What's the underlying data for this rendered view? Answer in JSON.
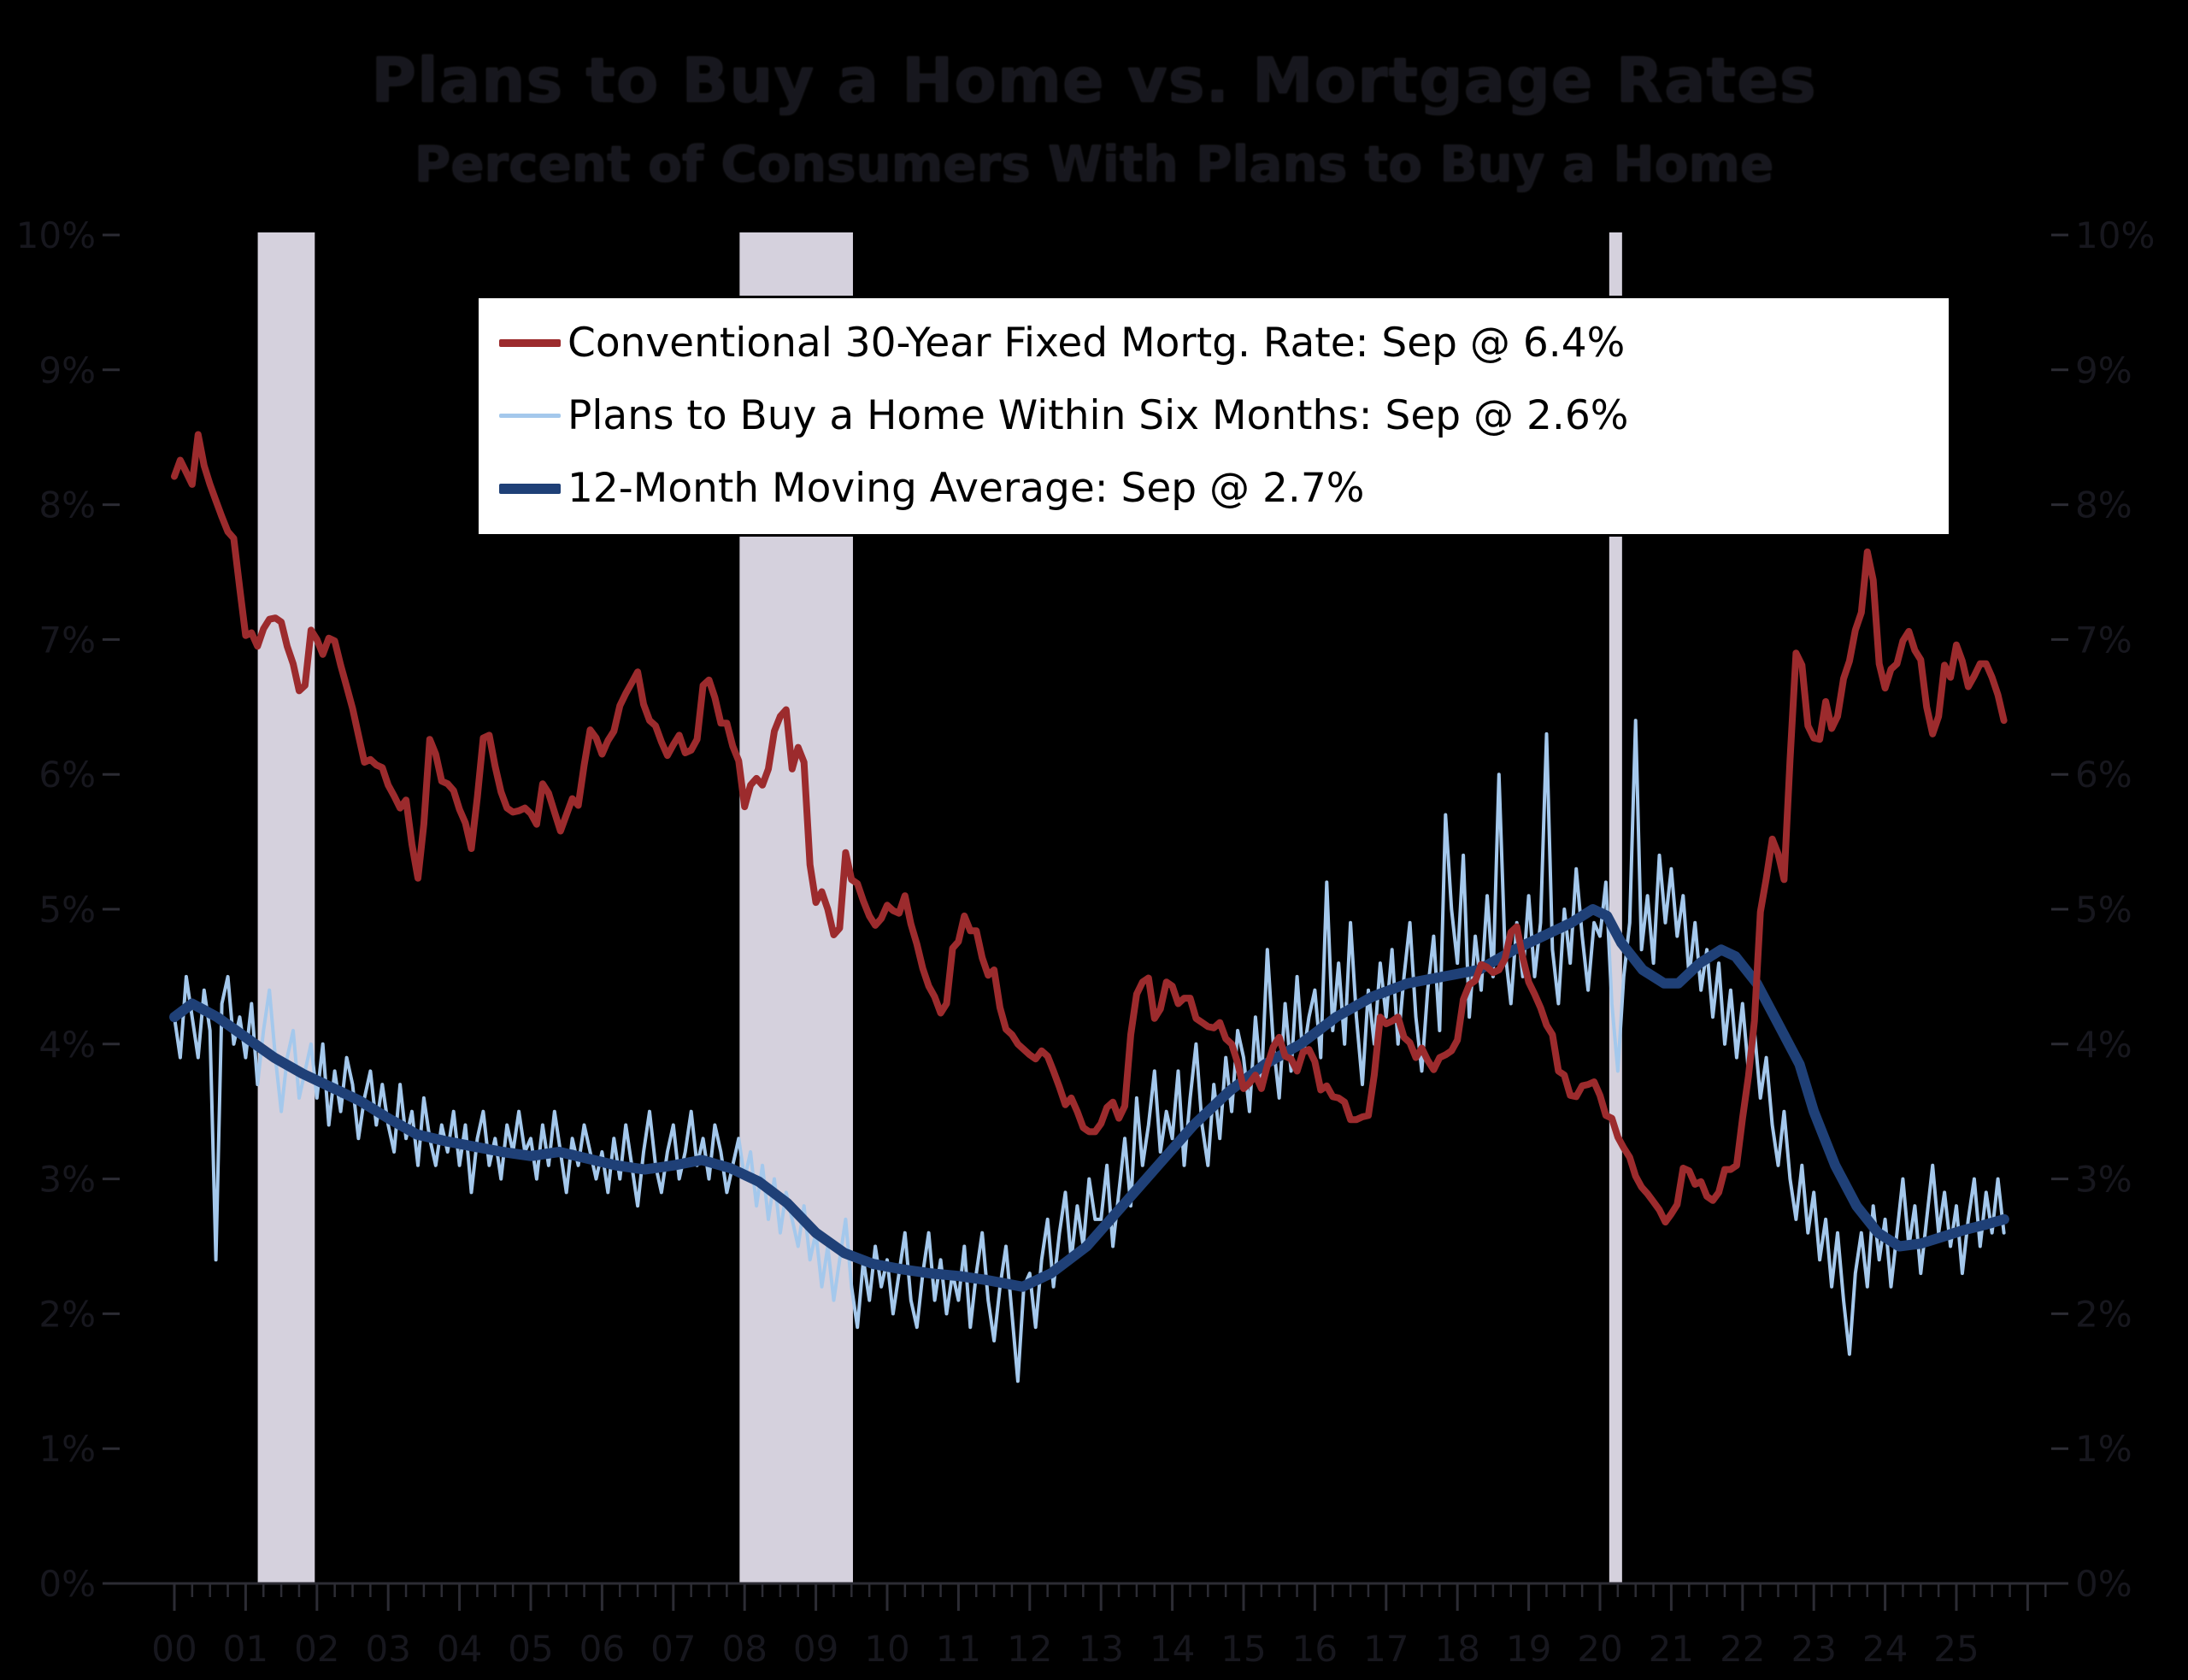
{
  "page": {
    "title": "Plans to Buy a Home vs. Mortgage Rates",
    "subtitle": "Percent of Consumers With Plans to Buy a Home"
  },
  "legend": {
    "items": [
      {
        "label": "Conventional 30-Year Fixed Mortg. Rate: Sep @ 6.4%",
        "color": "#9c2b2d",
        "weight": 9
      },
      {
        "label": "Plans to Buy a Home Within Six Months: Sep @ 2.6%",
        "color": "#a4c8ec",
        "weight": 5
      },
      {
        "label": "12-Month Moving Average: Sep @ 2.7%",
        "color": "#1f4077",
        "weight": 12
      }
    ]
  },
  "axes": {
    "left_labels": [
      "10%",
      "9%",
      "8%",
      "7%",
      "6%",
      "5%",
      "4%",
      "3%",
      "2%",
      "1%",
      "0%"
    ],
    "right_labels": [
      "10%",
      "9%",
      "8%",
      "7%",
      "6%",
      "5%",
      "4%",
      "3%",
      "2%",
      "1%",
      "0%"
    ],
    "x_labels": [
      "00",
      "01",
      "02",
      "03",
      "04",
      "05",
      "06",
      "07",
      "08",
      "09",
      "10",
      "11",
      "12",
      "13",
      "14",
      "15",
      "16",
      "17",
      "18",
      "19",
      "20",
      "21",
      "22",
      "23",
      "24",
      "25"
    ]
  },
  "colors": {
    "background": "#000000",
    "text_dark": "#17171e",
    "axis": "#2c2c34",
    "recession_band": "#d5d1dd",
    "legend_bg": "#ffffff",
    "legend_border": "#000000",
    "mortgage_red": "#9c2b2d",
    "plans_light_blue": "#a4c8ec",
    "moving_avg_navy": "#1f4077"
  },
  "chart_data": {
    "type": "line",
    "title": "Plans to Buy a Home vs. Mortgage Rates",
    "subtitle": "Percent of Consumers With Plans to Buy a Home",
    "ylabel_left": "%",
    "ylabel_right": "%",
    "ylim": [
      0,
      10
    ],
    "xlim": [
      2000,
      2026.3
    ],
    "grid": false,
    "legend_position": "top-center",
    "recession_shading_years": [
      [
        2001.17,
        2001.97
      ],
      [
        2007.93,
        2009.52
      ],
      [
        2020.13,
        2020.31
      ]
    ],
    "series": [
      {
        "name": "Conventional 30-Year Fixed Mortg. Rate",
        "latest_label": "Sep @ 6.4%",
        "color": "#9c2b2d",
        "frequency": "monthly",
        "start_year": 2000,
        "start_month": 1,
        "values": [
          8.21,
          8.33,
          8.24,
          8.15,
          8.52,
          8.29,
          8.15,
          8.03,
          7.91,
          7.8,
          7.75,
          7.38,
          7.03,
          7.05,
          6.95,
          7.08,
          7.15,
          7.16,
          7.13,
          6.95,
          6.82,
          6.62,
          6.66,
          7.07,
          7.0,
          6.89,
          7.01,
          6.99,
          6.81,
          6.65,
          6.49,
          6.29,
          6.09,
          6.11,
          6.07,
          6.05,
          5.92,
          5.84,
          5.75,
          5.81,
          5.48,
          5.23,
          5.63,
          6.26,
          6.15,
          5.95,
          5.93,
          5.88,
          5.74,
          5.64,
          5.45,
          5.83,
          6.27,
          6.29,
          6.06,
          5.87,
          5.75,
          5.72,
          5.73,
          5.75,
          5.71,
          5.63,
          5.93,
          5.86,
          5.72,
          5.58,
          5.7,
          5.82,
          5.77,
          6.07,
          6.33,
          6.27,
          6.15,
          6.25,
          6.32,
          6.51,
          6.6,
          6.68,
          6.76,
          6.52,
          6.4,
          6.36,
          6.24,
          6.14,
          6.22,
          6.29,
          6.16,
          6.18,
          6.26,
          6.66,
          6.7,
          6.57,
          6.38,
          6.38,
          6.21,
          6.1,
          5.76,
          5.92,
          5.97,
          5.92,
          6.04,
          6.32,
          6.43,
          6.48,
          6.04,
          6.2,
          6.09,
          5.33,
          5.05,
          5.13,
          5.0,
          4.81,
          4.86,
          5.42,
          5.22,
          5.19,
          5.06,
          4.95,
          4.88,
          4.93,
          5.03,
          4.99,
          4.97,
          5.1,
          4.89,
          4.74,
          4.56,
          4.43,
          4.35,
          4.23,
          4.3,
          4.71,
          4.76,
          4.95,
          4.84,
          4.84,
          4.64,
          4.51,
          4.55,
          4.27,
          4.11,
          4.07,
          4.0,
          3.96,
          3.92,
          3.89,
          3.95,
          3.91,
          3.8,
          3.68,
          3.55,
          3.6,
          3.5,
          3.38,
          3.35,
          3.35,
          3.41,
          3.53,
          3.57,
          3.45,
          3.54,
          4.07,
          4.37,
          4.46,
          4.49,
          4.19,
          4.26,
          4.46,
          4.43,
          4.3,
          4.34,
          4.34,
          4.19,
          4.16,
          4.13,
          4.12,
          4.16,
          4.04,
          4.0,
          3.86,
          3.67,
          3.71,
          3.77,
          3.67,
          3.84,
          3.98,
          4.05,
          3.91,
          3.89,
          3.8,
          3.94,
          3.96,
          3.87,
          3.66,
          3.69,
          3.61,
          3.6,
          3.57,
          3.44,
          3.44,
          3.46,
          3.47,
          3.77,
          4.2,
          4.15,
          4.17,
          4.2,
          4.05,
          4.01,
          3.9,
          3.97,
          3.88,
          3.81,
          3.9,
          3.92,
          3.95,
          4.03,
          4.33,
          4.44,
          4.47,
          4.59,
          4.57,
          4.53,
          4.55,
          4.63,
          4.83,
          4.87,
          4.64,
          4.46,
          4.37,
          4.27,
          4.14,
          4.07,
          3.8,
          3.77,
          3.62,
          3.61,
          3.69,
          3.7,
          3.72,
          3.62,
          3.47,
          3.45,
          3.31,
          3.23,
          3.16,
          3.02,
          2.94,
          2.89,
          2.83,
          2.77,
          2.68,
          2.74,
          2.81,
          3.08,
          3.06,
          2.96,
          2.98,
          2.87,
          2.84,
          2.9,
          3.07,
          3.07,
          3.1,
          3.45,
          3.76,
          4.17,
          4.98,
          5.23,
          5.52,
          5.41,
          5.22,
          6.11,
          6.9,
          6.81,
          6.36,
          6.27,
          6.26,
          6.54,
          6.34,
          6.43,
          6.71,
          6.84,
          7.07,
          7.2,
          7.65,
          7.44,
          6.82,
          6.64,
          6.78,
          6.82,
          6.99,
          7.06,
          6.92,
          6.85,
          6.5,
          6.3,
          6.43,
          6.81,
          6.72,
          6.96,
          6.84,
          6.65,
          6.73,
          6.82,
          6.82,
          6.72,
          6.59,
          6.4
        ]
      },
      {
        "name": "Plans to Buy a Home Within Six Months",
        "latest_label": "Sep @ 2.6%",
        "color": "#a4c8ec",
        "frequency": "monthly",
        "start_year": 2000,
        "start_month": 1,
        "values": [
          4.2,
          3.9,
          4.5,
          4.2,
          3.9,
          4.4,
          4.1,
          2.4,
          4.3,
          4.5,
          4.0,
          4.2,
          3.9,
          4.3,
          3.7,
          4.1,
          4.4,
          3.9,
          3.5,
          3.9,
          4.1,
          3.6,
          3.8,
          4.0,
          3.6,
          4.0,
          3.4,
          3.8,
          3.5,
          3.9,
          3.7,
          3.3,
          3.6,
          3.8,
          3.4,
          3.7,
          3.4,
          3.2,
          3.7,
          3.3,
          3.5,
          3.1,
          3.6,
          3.3,
          3.1,
          3.4,
          3.2,
          3.5,
          3.1,
          3.4,
          2.9,
          3.3,
          3.5,
          3.1,
          3.3,
          3.0,
          3.4,
          3.2,
          3.5,
          3.2,
          3.3,
          3.0,
          3.4,
          3.1,
          3.5,
          3.2,
          2.9,
          3.3,
          3.1,
          3.4,
          3.2,
          3.0,
          3.2,
          2.9,
          3.3,
          3.0,
          3.4,
          3.1,
          2.8,
          3.2,
          3.5,
          3.1,
          2.9,
          3.2,
          3.4,
          3.0,
          3.2,
          3.5,
          3.1,
          3.3,
          3.0,
          3.4,
          3.2,
          2.9,
          3.1,
          3.3,
          3.0,
          3.2,
          2.8,
          3.1,
          2.7,
          3.0,
          2.6,
          2.9,
          2.7,
          2.5,
          2.8,
          2.4,
          2.6,
          2.2,
          2.5,
          2.1,
          2.4,
          2.7,
          2.2,
          1.9,
          2.4,
          2.1,
          2.5,
          2.2,
          2.4,
          2.0,
          2.3,
          2.6,
          2.1,
          1.9,
          2.3,
          2.6,
          2.1,
          2.4,
          2.0,
          2.3,
          2.1,
          2.5,
          1.9,
          2.3,
          2.6,
          2.1,
          1.8,
          2.2,
          2.5,
          2.0,
          1.5,
          2.2,
          2.3,
          1.9,
          2.4,
          2.7,
          2.2,
          2.6,
          2.9,
          2.4,
          2.8,
          2.5,
          3.0,
          2.7,
          2.7,
          3.1,
          2.5,
          2.9,
          3.3,
          2.8,
          3.6,
          3.1,
          3.4,
          3.8,
          3.2,
          3.5,
          3.3,
          3.8,
          3.1,
          3.6,
          4.0,
          3.4,
          3.1,
          3.7,
          3.3,
          3.9,
          3.5,
          4.1,
          3.9,
          3.5,
          4.2,
          3.7,
          4.7,
          4.0,
          3.6,
          4.3,
          3.8,
          4.5,
          3.9,
          4.2,
          4.4,
          3.9,
          5.2,
          4.1,
          4.6,
          4.0,
          4.9,
          4.2,
          3.7,
          4.4,
          4.0,
          4.6,
          4.2,
          4.7,
          4.0,
          4.5,
          4.9,
          4.2,
          3.8,
          4.4,
          4.8,
          4.1,
          5.7,
          5.0,
          4.6,
          5.4,
          4.2,
          4.8,
          4.4,
          5.1,
          4.5,
          6.0,
          4.7,
          4.3,
          4.9,
          4.5,
          5.1,
          4.5,
          4.9,
          6.3,
          4.7,
          4.3,
          5.0,
          4.6,
          5.3,
          4.8,
          4.4,
          4.9,
          4.8,
          5.2,
          4.3,
          3.8,
          4.5,
          4.9,
          6.4,
          4.7,
          5.1,
          4.6,
          5.4,
          4.9,
          5.3,
          4.8,
          5.1,
          4.5,
          4.9,
          4.4,
          4.7,
          4.2,
          4.6,
          4.0,
          4.4,
          3.9,
          4.3,
          3.8,
          4.1,
          3.6,
          3.9,
          3.4,
          3.1,
          3.5,
          3.0,
          2.7,
          3.1,
          2.6,
          2.9,
          2.4,
          2.7,
          2.2,
          2.6,
          2.1,
          1.7,
          2.3,
          2.6,
          2.2,
          2.8,
          2.4,
          2.7,
          2.2,
          2.6,
          3.0,
          2.5,
          2.8,
          2.3,
          2.7,
          3.1,
          2.6,
          2.9,
          2.5,
          2.8,
          2.3,
          2.7,
          3.0,
          2.5,
          2.9,
          2.6,
          3.0,
          2.6
        ]
      },
      {
        "name": "12-Month Moving Average",
        "latest_label": "Sep @ 2.7%",
        "color": "#1f4077",
        "frequency": "anchor-points",
        "points": [
          [
            2000.0,
            4.2
          ],
          [
            2000.25,
            4.3
          ],
          [
            2000.6,
            4.2
          ],
          [
            2001.0,
            4.05
          ],
          [
            2001.4,
            3.9
          ],
          [
            2001.8,
            3.78
          ],
          [
            2002.2,
            3.68
          ],
          [
            2002.6,
            3.58
          ],
          [
            2003.0,
            3.45
          ],
          [
            2003.4,
            3.33
          ],
          [
            2003.8,
            3.28
          ],
          [
            2004.2,
            3.24
          ],
          [
            2004.6,
            3.2
          ],
          [
            2005.0,
            3.17
          ],
          [
            2005.4,
            3.2
          ],
          [
            2005.8,
            3.15
          ],
          [
            2006.2,
            3.1
          ],
          [
            2006.6,
            3.07
          ],
          [
            2007.0,
            3.1
          ],
          [
            2007.4,
            3.14
          ],
          [
            2007.8,
            3.08
          ],
          [
            2008.2,
            2.98
          ],
          [
            2008.6,
            2.82
          ],
          [
            2009.0,
            2.6
          ],
          [
            2009.4,
            2.45
          ],
          [
            2009.8,
            2.37
          ],
          [
            2010.2,
            2.33
          ],
          [
            2010.6,
            2.3
          ],
          [
            2011.0,
            2.28
          ],
          [
            2011.4,
            2.25
          ],
          [
            2011.9,
            2.2
          ],
          [
            2012.3,
            2.3
          ],
          [
            2012.8,
            2.5
          ],
          [
            2013.3,
            2.8
          ],
          [
            2013.8,
            3.1
          ],
          [
            2014.3,
            3.4
          ],
          [
            2014.8,
            3.65
          ],
          [
            2015.3,
            3.85
          ],
          [
            2015.8,
            4.0
          ],
          [
            2016.3,
            4.2
          ],
          [
            2016.8,
            4.35
          ],
          [
            2017.3,
            4.45
          ],
          [
            2017.8,
            4.5
          ],
          [
            2018.3,
            4.55
          ],
          [
            2018.8,
            4.7
          ],
          [
            2019.2,
            4.8
          ],
          [
            2019.6,
            4.9
          ],
          [
            2019.9,
            5.0
          ],
          [
            2020.1,
            4.95
          ],
          [
            2020.3,
            4.75
          ],
          [
            2020.6,
            4.55
          ],
          [
            2020.9,
            4.45
          ],
          [
            2021.1,
            4.45
          ],
          [
            2021.4,
            4.6
          ],
          [
            2021.7,
            4.7
          ],
          [
            2021.9,
            4.65
          ],
          [
            2022.2,
            4.45
          ],
          [
            2022.5,
            4.15
          ],
          [
            2022.8,
            3.85
          ],
          [
            2023.0,
            3.5
          ],
          [
            2023.3,
            3.1
          ],
          [
            2023.6,
            2.8
          ],
          [
            2023.9,
            2.6
          ],
          [
            2024.2,
            2.5
          ],
          [
            2024.5,
            2.52
          ],
          [
            2024.8,
            2.57
          ],
          [
            2025.1,
            2.62
          ],
          [
            2025.4,
            2.66
          ],
          [
            2025.67,
            2.7
          ]
        ]
      }
    ]
  }
}
